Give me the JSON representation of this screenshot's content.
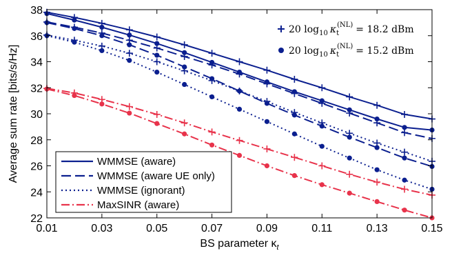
{
  "chart_data": {
    "type": "line",
    "title": "",
    "xlabel": "BS parameter κ",
    "xlabel_subscript": "t",
    "ylabel": "Average sum rate [bits/s/Hz]",
    "xlim": [
      0.01,
      0.15
    ],
    "ylim": [
      22,
      38
    ],
    "x_ticks": [
      "0.01",
      "0.03",
      "0.05",
      "0.07",
      "0.09",
      "0.11",
      "0.13",
      "0.15"
    ],
    "y_ticks": [
      "22",
      "24",
      "26",
      "28",
      "30",
      "32",
      "34",
      "36",
      "38"
    ],
    "grid": false,
    "x": [
      0.01,
      0.02,
      0.03,
      0.04,
      0.05,
      0.06,
      0.07,
      0.08,
      0.09,
      0.1,
      0.11,
      0.12,
      0.13,
      0.14,
      0.15
    ],
    "legend": {
      "placement": "bottom-left",
      "entries": [
        {
          "label": "WMMSE (aware)",
          "color": "#0b1f8f",
          "dash": "solid"
        },
        {
          "label": "WMMSE (aware UE only)",
          "color": "#0b1f8f",
          "dash": "dashed"
        },
        {
          "label": "WMMSE (ignorant)",
          "color": "#0b1f8f",
          "dash": "dotted"
        },
        {
          "label": "MaxSINR (aware)",
          "color": "#e8334b",
          "dash": "dashdot"
        }
      ]
    },
    "marker_legend": {
      "placement": "top-right",
      "entries": [
        {
          "marker": "plus",
          "prefix": "20 log",
          "sub": "10",
          "kappa_sub": "t",
          "kappa_sup": "(NL)",
          "value": "= 18.2 dBm"
        },
        {
          "marker": "circle",
          "prefix": "20 log",
          "sub": "10",
          "kappa_sub": "t",
          "kappa_sup": "(NL)",
          "value": "= 15.2 dBm"
        }
      ]
    },
    "series": [
      {
        "style": "solid",
        "marker": "plus",
        "color": "#0b1f8f",
        "values": [
          37.8,
          37.4,
          36.95,
          36.45,
          35.9,
          35.3,
          34.65,
          34.0,
          33.35,
          32.65,
          32.0,
          31.3,
          30.65,
          29.95,
          29.6
        ]
      },
      {
        "style": "solid",
        "marker": "circle",
        "color": "#0b1f8f",
        "values": [
          37.7,
          37.2,
          36.65,
          36.05,
          35.4,
          34.7,
          33.95,
          33.2,
          32.45,
          31.7,
          31.0,
          30.3,
          29.6,
          28.95,
          28.75
        ]
      },
      {
        "style": "dashed",
        "marker": "plus",
        "color": "#0b1f8f",
        "values": [
          37.05,
          36.65,
          36.2,
          35.65,
          35.05,
          34.4,
          33.75,
          33.05,
          32.3,
          31.55,
          30.8,
          30.05,
          29.3,
          28.55,
          28.1
        ]
      },
      {
        "style": "dashed",
        "marker": "circle",
        "color": "#0b1f8f",
        "values": [
          37.0,
          36.55,
          36.0,
          35.3,
          34.5,
          33.6,
          32.7,
          31.75,
          30.8,
          29.9,
          29.05,
          28.2,
          27.4,
          26.6,
          25.95
        ]
      },
      {
        "style": "dotted",
        "marker": "plus",
        "color": "#0b1f8f",
        "values": [
          36.05,
          35.65,
          35.2,
          34.65,
          34.0,
          33.3,
          32.55,
          31.75,
          30.95,
          30.1,
          29.3,
          28.5,
          27.75,
          27.05,
          26.35
        ]
      },
      {
        "style": "dotted",
        "marker": "circle",
        "color": "#0b1f8f",
        "values": [
          36.0,
          35.5,
          34.85,
          34.1,
          33.2,
          32.25,
          31.3,
          30.35,
          29.4,
          28.45,
          27.5,
          26.6,
          25.7,
          24.9,
          24.2
        ]
      },
      {
        "style": "dashdot",
        "marker": "plus",
        "color": "#e8334b",
        "values": [
          31.95,
          31.6,
          31.1,
          30.55,
          29.95,
          29.3,
          28.6,
          27.95,
          27.3,
          26.65,
          26.0,
          25.35,
          24.75,
          24.2,
          23.75
        ]
      },
      {
        "style": "dashdot",
        "marker": "circle",
        "color": "#e8334b",
        "values": [
          31.9,
          31.4,
          30.75,
          30.05,
          29.25,
          28.45,
          27.6,
          26.8,
          26.0,
          25.25,
          24.55,
          23.9,
          23.25,
          22.6,
          22.0
        ]
      }
    ]
  }
}
